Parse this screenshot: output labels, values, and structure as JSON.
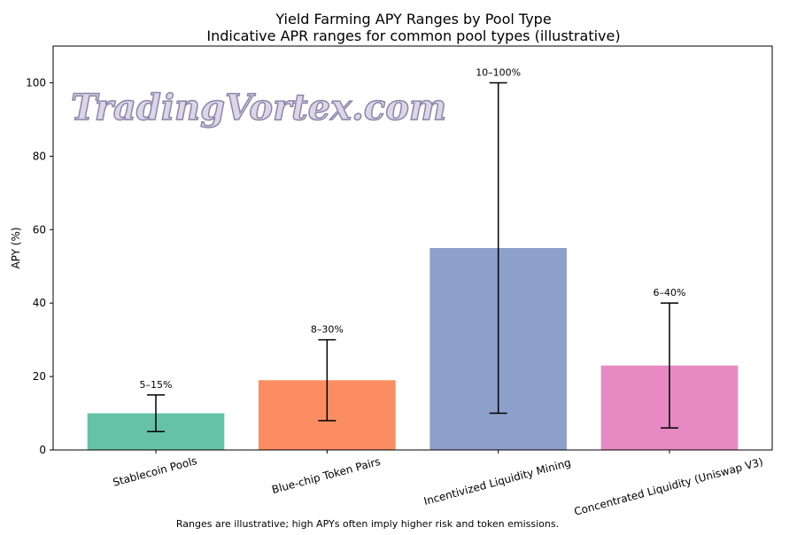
{
  "chart_data": {
    "type": "bar",
    "title": "Yield Farming APY Ranges by Pool Type",
    "subtitle": "Indicative APR ranges for common pool types (illustrative)",
    "xlabel": "",
    "ylabel": "APY (%)",
    "ylim": [
      0,
      110
    ],
    "yticks": [
      0,
      20,
      40,
      60,
      80,
      100
    ],
    "grid": false,
    "categories": [
      "Stablecoin Pools",
      "Blue-chip Token Pairs",
      "Incentivized Liquidity Mining",
      "Concentrated Liquidity (Uniswap V3)"
    ],
    "values": [
      10,
      19,
      55,
      23
    ],
    "ranges": [
      [
        5,
        15
      ],
      [
        8,
        30
      ],
      [
        10,
        100
      ],
      [
        6,
        40
      ]
    ],
    "range_labels": [
      "5–15%",
      "8–30%",
      "10–100%",
      "6–40%"
    ],
    "colors": [
      "#66c2a5",
      "#fc8d62",
      "#8da0cb",
      "#e78ac3"
    ],
    "footnote": "Ranges are illustrative; high APYs often imply higher risk and token emissions."
  },
  "watermark": "TradingVortex.com"
}
